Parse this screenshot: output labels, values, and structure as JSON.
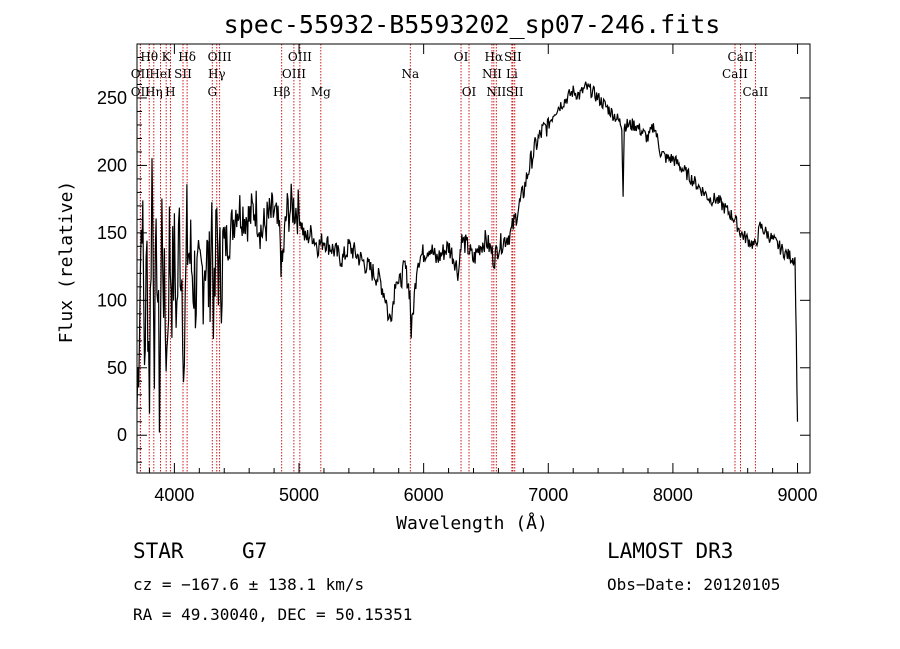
{
  "chart_data": {
    "type": "line",
    "title": "spec-55932-B5593202_sp07-246.fits",
    "xlabel": "Wavelength (Å)",
    "ylabel": "Flux (relative)",
    "xlim": [
      3700,
      9100
    ],
    "ylim": [
      -28,
      290
    ],
    "x_ticks": [
      4000,
      5000,
      6000,
      7000,
      8000,
      9000
    ],
    "x_tick_labels": [
      "4000",
      "5000",
      "6000",
      "7000",
      "8000",
      "9000"
    ],
    "y_ticks": [
      0,
      50,
      100,
      150,
      200,
      250
    ],
    "y_tick_labels": [
      "0",
      "50",
      "100",
      "150",
      "200",
      "250"
    ],
    "series": [
      {
        "name": "flux",
        "x": [
          3700,
          3720,
          3740,
          3760,
          3780,
          3800,
          3820,
          3840,
          3860,
          3880,
          3900,
          3920,
          3940,
          3960,
          3980,
          4000,
          4020,
          4040,
          4060,
          4080,
          4100,
          4150,
          4200,
          4250,
          4280,
          4300,
          4320,
          4340,
          4360,
          4400,
          4450,
          4500,
          4550,
          4600,
          4650,
          4700,
          4750,
          4800,
          4850,
          4861,
          4900,
          4950,
          5000,
          5050,
          5100,
          5150,
          5200,
          5250,
          5300,
          5350,
          5400,
          5450,
          5500,
          5550,
          5600,
          5650,
          5700,
          5720,
          5750,
          5780,
          5800,
          5850,
          5890,
          5900,
          5950,
          6000,
          6050,
          6100,
          6150,
          6200,
          6250,
          6280,
          6300,
          6350,
          6400,
          6450,
          6500,
          6550,
          6563,
          6600,
          6650,
          6700,
          6750,
          6800,
          6850,
          6900,
          6950,
          7000,
          7050,
          7100,
          7150,
          7200,
          7250,
          7300,
          7350,
          7400,
          7450,
          7500,
          7550,
          7590,
          7600,
          7610,
          7650,
          7700,
          7750,
          7800,
          7850,
          7900,
          7950,
          8000,
          8050,
          8100,
          8150,
          8200,
          8250,
          8300,
          8350,
          8400,
          8450,
          8498,
          8542,
          8600,
          8662,
          8700,
          8750,
          8800,
          8850,
          8900,
          8950,
          8980,
          8990,
          9000
        ],
        "values": [
          20,
          95,
          180,
          60,
          130,
          40,
          200,
          75,
          140,
          30,
          160,
          95,
          60,
          145,
          110,
          130,
          90,
          155,
          120,
          60,
          145,
          120,
          100,
          140,
          110,
          165,
          80,
          160,
          115,
          140,
          150,
          170,
          165,
          160,
          170,
          150,
          160,
          165,
          145,
          120,
          165,
          170,
          165,
          145,
          150,
          140,
          145,
          140,
          135,
          130,
          140,
          135,
          130,
          125,
          120,
          115,
          100,
          85,
          95,
          120,
          110,
          125,
          105,
          75,
          130,
          135,
          140,
          130,
          135,
          140,
          130,
          120,
          145,
          140,
          130,
          140,
          145,
          135,
          130,
          140,
          145,
          150,
          165,
          180,
          200,
          215,
          225,
          230,
          240,
          245,
          250,
          255,
          252,
          258,
          255,
          250,
          245,
          240,
          235,
          230,
          180,
          230,
          230,
          230,
          225,
          220,
          230,
          210,
          205,
          205,
          200,
          195,
          190,
          185,
          180,
          175,
          175,
          170,
          165,
          160,
          150,
          145,
          140,
          155,
          150,
          145,
          140,
          135,
          132,
          130,
          70,
          10
        ]
      }
    ],
    "lines": [
      {
        "name": "OII",
        "wavelength": 3727,
        "row": 3
      },
      {
        "name": "Hθ",
        "wavelength": 3798,
        "row": 1
      },
      {
        "name": "OII",
        "wavelength": 3727,
        "row": 2
      },
      {
        "name": "Hη",
        "wavelength": 3835,
        "row": 3
      },
      {
        "name": "HeI",
        "wavelength": 3889,
        "row": 2
      },
      {
        "name": "K",
        "wavelength": 3934,
        "row": 1
      },
      {
        "name": "H",
        "wavelength": 3968,
        "row": 3
      },
      {
        "name": "SII",
        "wavelength": 4069,
        "row": 2
      },
      {
        "name": "Hδ",
        "wavelength": 4102,
        "row": 1
      },
      {
        "name": "G",
        "wavelength": 4304,
        "row": 3
      },
      {
        "name": "OIII",
        "wavelength": 4363,
        "row": 1
      },
      {
        "name": "Hγ",
        "wavelength": 4340,
        "row": 2
      },
      {
        "name": "Hβ",
        "wavelength": 4861,
        "row": 3
      },
      {
        "name": "OIII",
        "wavelength": 4959,
        "row": 2
      },
      {
        "name": "OIII",
        "wavelength": 5007,
        "row": 1
      },
      {
        "name": "Mg",
        "wavelength": 5175,
        "row": 3
      },
      {
        "name": "Na",
        "wavelength": 5893,
        "row": 2
      },
      {
        "name": "OI",
        "wavelength": 6300,
        "row": 1
      },
      {
        "name": "OI",
        "wavelength": 6364,
        "row": 3
      },
      {
        "name": "NII",
        "wavelength": 6548,
        "row": 2
      },
      {
        "name": "Hα",
        "wavelength": 6563,
        "row": 1
      },
      {
        "name": "NII",
        "wavelength": 6583,
        "row": 3
      },
      {
        "name": "SII",
        "wavelength": 6716,
        "row": 1
      },
      {
        "name": "Li",
        "wavelength": 6708,
        "row": 2
      },
      {
        "name": "SII",
        "wavelength": 6731,
        "row": 3
      },
      {
        "name": "CaII",
        "wavelength": 8498,
        "row": 2
      },
      {
        "name": "CaII",
        "wavelength": 8542,
        "row": 1
      },
      {
        "name": "CaII",
        "wavelength": 8662,
        "row": 3
      }
    ]
  },
  "info": {
    "class": "STAR",
    "subclass": "G7",
    "survey": "LAMOST DR3",
    "cz": "cz = −167.6 ± 138.1 km/s",
    "obs_date": "Obs−Date: 20120105",
    "coords": "RA =  49.30040, DEC =  50.15351"
  },
  "colors": {
    "line_marker": "#cc0000",
    "spectrum": "#000000",
    "axes": "#000000"
  }
}
